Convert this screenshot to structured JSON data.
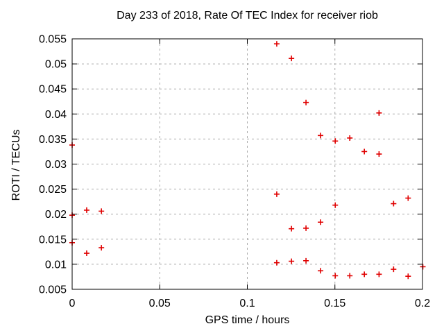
{
  "chart_data": {
    "type": "scatter",
    "title": "Day 233 of 2018, Rate Of TEC Index for receiver riob",
    "xlabel": "GPS time / hours",
    "ylabel": "ROTI / TECUs",
    "xlim": [
      0,
      0.2
    ],
    "ylim": [
      0.005,
      0.055
    ],
    "grid": "dashed gray, on every tick",
    "legend": "none",
    "marker": "plus",
    "colors": {
      "marker": "#e00000",
      "grid": "#ababab",
      "axis": "#000000",
      "background": "#ffffff"
    },
    "xticks": [
      {
        "v": 0,
        "label": "0"
      },
      {
        "v": 0.05,
        "label": "0.05"
      },
      {
        "v": 0.1,
        "label": "0.1"
      },
      {
        "v": 0.15,
        "label": "0.15"
      },
      {
        "v": 0.2,
        "label": "0.2"
      }
    ],
    "yticks": [
      {
        "v": 0.005,
        "label": "0.005"
      },
      {
        "v": 0.01,
        "label": "0.01"
      },
      {
        "v": 0.015,
        "label": "0.015"
      },
      {
        "v": 0.02,
        "label": "0.02"
      },
      {
        "v": 0.025,
        "label": "0.025"
      },
      {
        "v": 0.03,
        "label": "0.03"
      },
      {
        "v": 0.035,
        "label": "0.035"
      },
      {
        "v": 0.04,
        "label": "0.04"
      },
      {
        "v": 0.045,
        "label": "0.045"
      },
      {
        "v": 0.05,
        "label": "0.05"
      },
      {
        "v": 0.055,
        "label": "0.055"
      }
    ],
    "series": [
      {
        "name": "ROTI",
        "points": [
          [
            0.0,
            0.0338
          ],
          [
            0.0,
            0.0198
          ],
          [
            0.0,
            0.0143
          ],
          [
            0.0083,
            0.0208
          ],
          [
            0.0083,
            0.0122
          ],
          [
            0.0167,
            0.0206
          ],
          [
            0.0167,
            0.0133
          ],
          [
            0.1168,
            0.054
          ],
          [
            0.1168,
            0.024
          ],
          [
            0.1168,
            0.0103
          ],
          [
            0.1252,
            0.0511
          ],
          [
            0.1252,
            0.0171
          ],
          [
            0.1252,
            0.0106
          ],
          [
            0.1335,
            0.0423
          ],
          [
            0.1335,
            0.0172
          ],
          [
            0.1335,
            0.0107
          ],
          [
            0.1418,
            0.0357
          ],
          [
            0.1418,
            0.0184
          ],
          [
            0.1418,
            0.0087
          ],
          [
            0.1502,
            0.0346
          ],
          [
            0.1502,
            0.0218
          ],
          [
            0.1502,
            0.0077
          ],
          [
            0.1585,
            0.0352
          ],
          [
            0.1585,
            0.0077
          ],
          [
            0.1668,
            0.0325
          ],
          [
            0.1668,
            0.008
          ],
          [
            0.1752,
            0.0402
          ],
          [
            0.1752,
            0.032
          ],
          [
            0.1752,
            0.008
          ],
          [
            0.1835,
            0.0221
          ],
          [
            0.1835,
            0.009
          ],
          [
            0.1918,
            0.0232
          ],
          [
            0.1918,
            0.0076
          ],
          [
            0.2002,
            0.0095
          ]
        ]
      }
    ]
  }
}
